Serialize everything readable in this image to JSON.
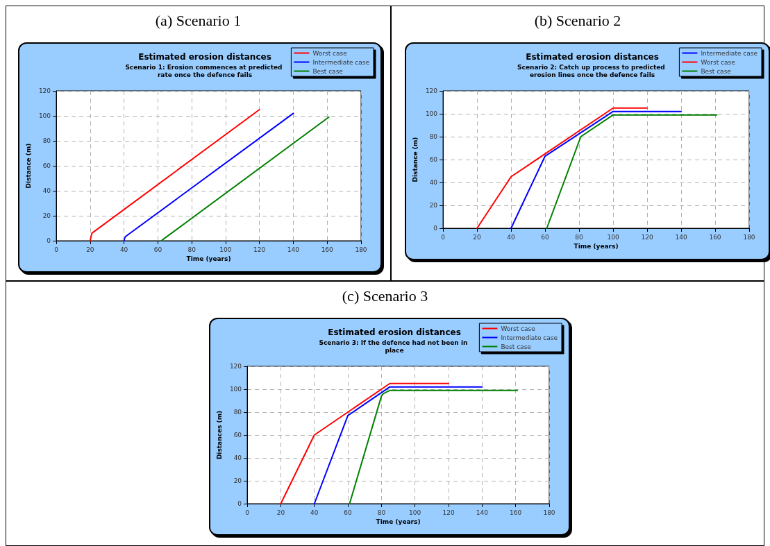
{
  "chart_data": [
    {
      "type": "line",
      "title": "Estimated erosion distances",
      "subtitle": "Scenario 1: Erosion commences at predicted rate once the defence fails",
      "annotations": [
        "(a) Scenario 1"
      ],
      "xlabel": "Time (years)",
      "ylabel": "Distance (m)",
      "xlim": [
        0,
        180
      ],
      "xticks": [
        0,
        20,
        40,
        60,
        80,
        100,
        120,
        140,
        160,
        180
      ],
      "ylim": [
        0,
        120
      ],
      "yticks": [
        0,
        20,
        40,
        60,
        80,
        100,
        120
      ],
      "grid": true,
      "legend": "top right",
      "marker": "none",
      "series": [
        {
          "name": "Worst case",
          "color": "#ff0000",
          "x": [
            20,
            20.5,
            21,
            22,
            120
          ],
          "values": [
            0,
            3,
            6,
            7,
            105
          ]
        },
        {
          "name": "Intermediate case",
          "color": "#0000ff",
          "x": [
            40,
            40.5,
            41,
            140
          ],
          "values": [
            0,
            2.5,
            3.5,
            102
          ]
        },
        {
          "name": "Best case",
          "color": "#008000",
          "x": [
            62,
            63,
            64,
            161
          ],
          "values": [
            0,
            1,
            2,
            99
          ]
        }
      ]
    },
    {
      "type": "line",
      "title": "Estimated erosion distances",
      "subtitle": "Scenario 2: Catch up process to predicted erosion lines once the defence fails",
      "annotations": [
        "(b) Scenario 2"
      ],
      "xlabel": "Time (years)",
      "ylabel": "Distance (m)",
      "xlim": [
        0,
        180
      ],
      "xticks": [
        0,
        20,
        40,
        60,
        80,
        100,
        120,
        140,
        160,
        180
      ],
      "ylim": [
        0,
        120
      ],
      "yticks": [
        0,
        20,
        40,
        60,
        80,
        100,
        120
      ],
      "grid": true,
      "legend": "top right",
      "marker": "none",
      "series": [
        {
          "name": "Intermediate case",
          "color": "#0000ff",
          "x": [
            40,
            60,
            100,
            140
          ],
          "values": [
            0,
            63,
            102,
            102
          ]
        },
        {
          "name": "Worst case",
          "color": "#ff0000",
          "x": [
            20,
            40,
            100,
            120
          ],
          "values": [
            0,
            45,
            105,
            105
          ]
        },
        {
          "name": "Best case",
          "color": "#008000",
          "x": [
            61,
            81,
            100,
            161
          ],
          "values": [
            0,
            80,
            99,
            99
          ]
        }
      ]
    },
    {
      "type": "line",
      "title": "Estimated erosion distances",
      "subtitle": "Scenario 3: If the defence had not been in place",
      "annotations": [
        "(c) Scenario 3"
      ],
      "xlabel": "Time (years)",
      "ylabel": "Distances (m)",
      "xlim": [
        0,
        180
      ],
      "xticks": [
        0,
        20,
        40,
        60,
        80,
        100,
        120,
        140,
        160,
        180
      ],
      "ylim": [
        0,
        120
      ],
      "yticks": [
        0,
        20,
        40,
        60,
        80,
        100,
        120
      ],
      "grid": true,
      "legend": "top right",
      "marker": "none",
      "series": [
        {
          "name": "Worst case",
          "color": "#ff0000",
          "x": [
            20,
            40,
            85,
            120
          ],
          "values": [
            0,
            60,
            105,
            105
          ]
        },
        {
          "name": "Intermediate case",
          "color": "#0000ff",
          "x": [
            40,
            60,
            85,
            140
          ],
          "values": [
            0,
            77,
            102,
            102
          ]
        },
        {
          "name": "Best case",
          "color": "#008000",
          "x": [
            61,
            80,
            81,
            85,
            161
          ],
          "values": [
            0,
            94,
            96,
            99,
            99
          ]
        }
      ]
    }
  ]
}
